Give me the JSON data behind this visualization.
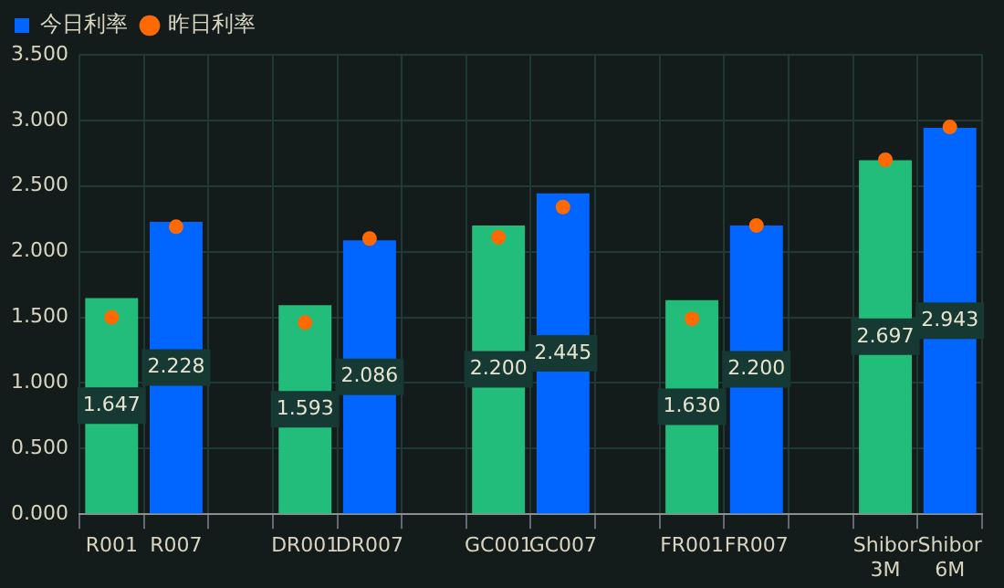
{
  "chart_data": {
    "type": "bar",
    "categories": [
      "R001",
      "R007",
      null,
      "DR001",
      "DR007",
      null,
      "GC001",
      "GC007",
      null,
      "FR001",
      "FR007",
      null,
      "Shibor 3M",
      "Shibor 6M"
    ],
    "series": [
      {
        "name": "今日利率",
        "color": "#0066ff",
        "value_labels": [
          "1.647",
          "2.228",
          null,
          "1.593",
          "2.086",
          null,
          "2.200",
          "2.445",
          null,
          "1.630",
          "2.200",
          null,
          "2.697",
          "2.943"
        ],
        "colors": [
          "#22bd7a",
          "#0066ff",
          "#22bd7a",
          "#22bd7a",
          "#0066ff",
          "#22bd7a",
          "#22bd7a",
          "#0066ff",
          "#22bd7a",
          "#22bd7a",
          "#0066ff",
          "#22bd7a",
          "#22bd7a",
          "#0066ff"
        ],
        "values": [
          1.647,
          2.228,
          null,
          1.593,
          2.086,
          null,
          2.2,
          2.445,
          null,
          1.63,
          2.2,
          null,
          2.697,
          2.943
        ]
      },
      {
        "name": "昨日利率",
        "type": "scatter",
        "color": "#ff6a00",
        "values": [
          1.5,
          2.19,
          null,
          1.46,
          2.1,
          null,
          2.11,
          2.34,
          null,
          1.49,
          2.2,
          null,
          2.7,
          2.95
        ]
      }
    ],
    "ylim": [
      0,
      3.5
    ],
    "yticks": [
      {
        "value": 0,
        "label": "0.000"
      },
      {
        "value": 0.5,
        "label": "0.500"
      },
      {
        "value": 1,
        "label": "1.000"
      },
      {
        "value": 1.5,
        "label": "1.500"
      },
      {
        "value": 2,
        "label": "2.000"
      },
      {
        "value": 2.5,
        "label": "2.500"
      },
      {
        "value": 3,
        "label": "3.000"
      },
      {
        "value": 3.5,
        "label": "3.500"
      }
    ],
    "grid": true,
    "legend": "top left",
    "marker": "circle"
  }
}
